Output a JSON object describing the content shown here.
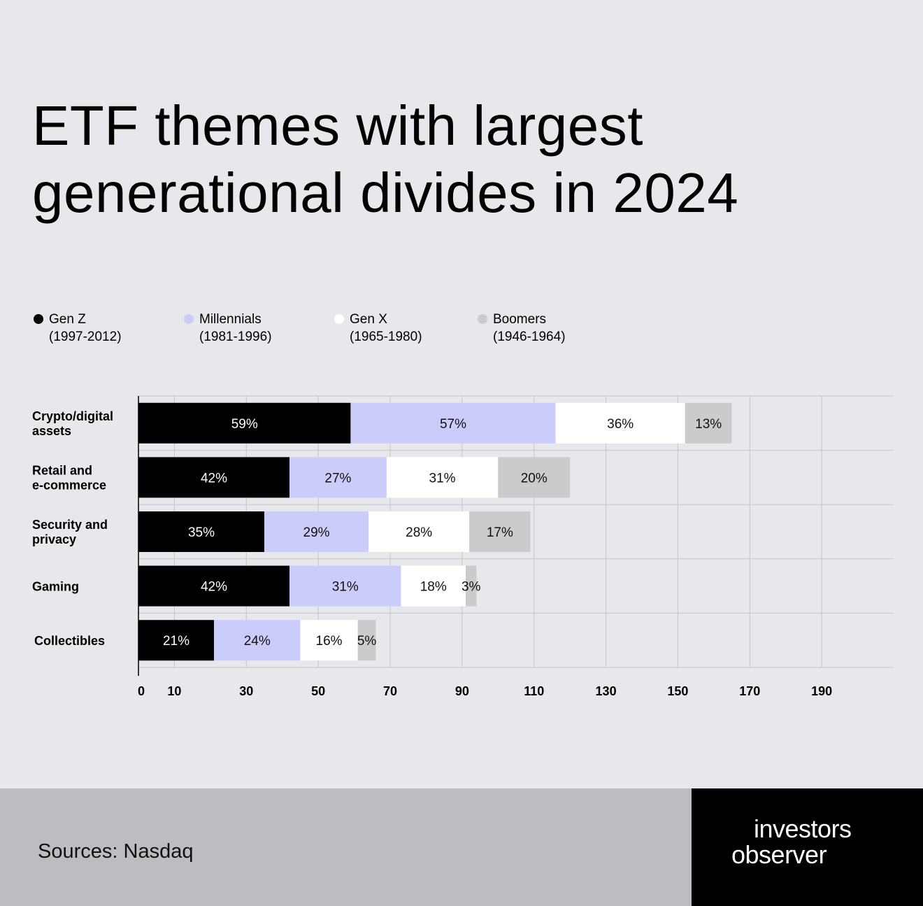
{
  "title_line1": "ETF themes with largest",
  "title_line2": "generational divides in 2024",
  "legend": [
    {
      "name": "Gen Z",
      "years": "(1997-2012)",
      "color": "#000000"
    },
    {
      "name": "Millennials",
      "years": "(1981-1996)",
      "color": "#ccccfb"
    },
    {
      "name": "Gen X",
      "years": "(1965-1980)",
      "color": "#ffffff"
    },
    {
      "name": "Boomers",
      "years": "(1946-1964)",
      "color": "#cacbcd"
    }
  ],
  "chart_data": {
    "type": "bar",
    "orientation": "horizontal",
    "stacked": true,
    "categories": [
      [
        "Crypto/digital",
        "assets"
      ],
      [
        "Retail and",
        "e-commerce"
      ],
      [
        "Security and",
        "privacy"
      ],
      [
        "Gaming"
      ],
      [
        "Collectibles"
      ]
    ],
    "series": [
      {
        "name": "Gen Z",
        "values": [
          59,
          42,
          35,
          42,
          21
        ],
        "labels": [
          "59%",
          "42%",
          "35%",
          "42%",
          "21%"
        ],
        "color": "#000000",
        "label_color": "#ffffff"
      },
      {
        "name": "Millennials",
        "values": [
          57,
          27,
          29,
          31,
          24
        ],
        "labels": [
          "57%",
          "27%",
          "29%",
          "31%",
          "24%"
        ],
        "color": "#ccccfb",
        "label_color": "#111111"
      },
      {
        "name": "Gen X",
        "values": [
          36,
          31,
          28,
          18,
          16
        ],
        "labels": [
          "36%",
          "31%",
          "28%",
          "18%",
          "16%"
        ],
        "color": "#ffffff",
        "label_color": "#111111"
      },
      {
        "name": "Boomers",
        "values": [
          13,
          20,
          17,
          3,
          5
        ],
        "labels": [
          "13%",
          "20%",
          "17%",
          "3%",
          "5%"
        ],
        "color": "#cacbcd",
        "label_color": "#111111"
      }
    ],
    "xticks": [
      0,
      10,
      30,
      50,
      70,
      90,
      110,
      130,
      150,
      170,
      190
    ],
    "xlim": [
      0,
      210
    ],
    "grid": true,
    "legend_position": "top"
  },
  "footer": {
    "source": "Sources: Nasdaq",
    "logo_line1": "investors",
    "logo_line2": "observer"
  }
}
